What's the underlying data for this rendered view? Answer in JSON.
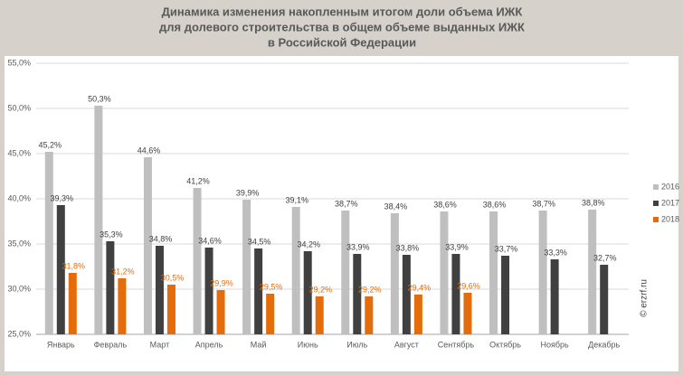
{
  "chart_data": {
    "type": "bar",
    "title": [
      "Динамика изменения накопленным итогом доли объема ИЖК",
      "для долевого строительства  в общем объеме выданных ИЖК",
      "в Российской  Федерации"
    ],
    "annotation": "© erzrf.ru",
    "categories": [
      "Январь",
      "Февраль",
      "Март",
      "Апрель",
      "Май",
      "Июнь",
      "Июль",
      "Август",
      "Сентябрь",
      "Октябрь",
      "Ноябрь",
      "Декабрь"
    ],
    "series": [
      {
        "name": "2016",
        "color": "#bfbfbf",
        "label_color": "#404040",
        "values": [
          45.2,
          50.3,
          44.6,
          41.2,
          39.9,
          39.1,
          38.7,
          38.4,
          38.6,
          38.6,
          38.7,
          38.8
        ],
        "value_labels": [
          "45,2%",
          "50,3%",
          "44,6%",
          "41,2%",
          "39,9%",
          "39,1%",
          "38,7%",
          "38,4%",
          "38,6%",
          "38,6%",
          "38,7%",
          "38,8%"
        ]
      },
      {
        "name": "2017",
        "color": "#404040",
        "label_color": "#404040",
        "values": [
          39.3,
          35.3,
          34.8,
          34.6,
          34.5,
          34.2,
          33.9,
          33.8,
          33.9,
          33.7,
          33.3,
          32.7
        ],
        "value_labels": [
          "39,3%",
          "35,3%",
          "34,8%",
          "34,6%",
          "34,5%",
          "34,2%",
          "33,9%",
          "33,8%",
          "33,9%",
          "33,7%",
          "33,3%",
          "32,7%"
        ]
      },
      {
        "name": "2018",
        "color": "#e46c0a",
        "label_color": "#e46c0a",
        "values": [
          31.8,
          31.2,
          30.5,
          29.9,
          29.5,
          29.2,
          29.2,
          29.4,
          29.6,
          null,
          null,
          null
        ],
        "value_labels": [
          "31,8%",
          "31,2%",
          "30,5%",
          "29,9%",
          "29,5%",
          "29,2%",
          "29,2%",
          "29,4%",
          "29,6%",
          null,
          null,
          null
        ]
      }
    ],
    "ylim": [
      25,
      55
    ],
    "yticks": [
      {
        "value": 25,
        "label": "25,0%"
      },
      {
        "value": 30,
        "label": "30,0%"
      },
      {
        "value": 35,
        "label": "35,0%"
      },
      {
        "value": 40,
        "label": "40,0%"
      },
      {
        "value": 45,
        "label": "45,0%"
      },
      {
        "value": 50,
        "label": "50,0%"
      },
      {
        "value": 55,
        "label": "55,0%"
      }
    ],
    "grid": true,
    "legend": "right"
  }
}
